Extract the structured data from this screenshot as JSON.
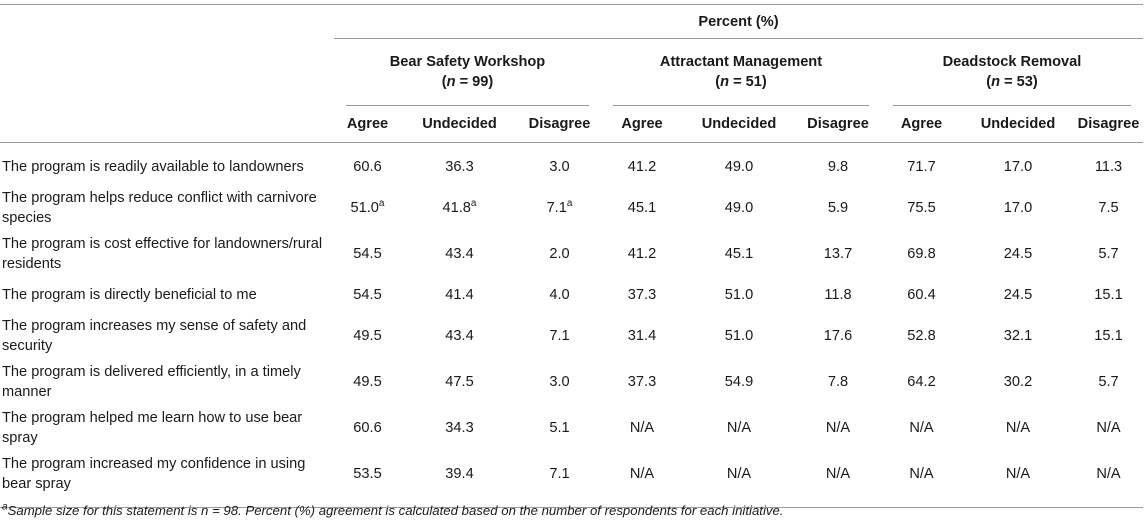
{
  "header": {
    "percent_label": "Percent (%)",
    "groups": [
      {
        "name": "Bear Safety Workshop",
        "n_label": "n",
        "n_eq": " = 99"
      },
      {
        "name": "Attractant Management",
        "n_label": "n",
        "n_eq": " = 51"
      },
      {
        "name": "Deadstock Removal",
        "n_label": "n",
        "n_eq": " = 53"
      }
    ],
    "sub": [
      "Agree",
      "Undecided",
      "Disagree",
      "Agree",
      "Undecided",
      "Disagree",
      "Agree",
      "Undecided",
      "Disagree"
    ]
  },
  "rows": [
    {
      "label": "The program is readily available to landowners",
      "values": [
        "60.6",
        "36.3",
        "3.0",
        "41.2",
        "49.0",
        "9.8",
        "71.7",
        "17.0",
        "11.3"
      ],
      "sup": [
        "",
        "",
        "",
        "",
        "",
        "",
        "",
        "",
        ""
      ]
    },
    {
      "label": "The program helps reduce conflict with carnivore species",
      "values": [
        "51.0",
        "41.8",
        "7.1",
        "45.1",
        "49.0",
        "5.9",
        "75.5",
        "17.0",
        "7.5"
      ],
      "sup": [
        "a",
        "a",
        "a",
        "",
        "",
        "",
        "",
        "",
        ""
      ]
    },
    {
      "label": "The program is cost effective for landowners/rural residents",
      "values": [
        "54.5",
        "43.4",
        "2.0",
        "41.2",
        "45.1",
        "13.7",
        "69.8",
        "24.5",
        "5.7"
      ],
      "sup": [
        "",
        "",
        "",
        "",
        "",
        "",
        "",
        "",
        ""
      ]
    },
    {
      "label": "The program is directly beneficial to me",
      "values": [
        "54.5",
        "41.4",
        "4.0",
        "37.3",
        "51.0",
        "11.8",
        "60.4",
        "24.5",
        "15.1"
      ],
      "sup": [
        "",
        "",
        "",
        "",
        "",
        "",
        "",
        "",
        ""
      ]
    },
    {
      "label": "The program increases my sense of safety and security",
      "values": [
        "49.5",
        "43.4",
        "7.1",
        "31.4",
        "51.0",
        "17.6",
        "52.8",
        "32.1",
        "15.1"
      ],
      "sup": [
        "",
        "",
        "",
        "",
        "",
        "",
        "",
        "",
        ""
      ]
    },
    {
      "label": "The program is delivered efficiently, in a timely manner",
      "values": [
        "49.5",
        "47.5",
        "3.0",
        "37.3",
        "54.9",
        "7.8",
        "64.2",
        "30.2",
        "5.7"
      ],
      "sup": [
        "",
        "",
        "",
        "",
        "",
        "",
        "",
        "",
        ""
      ]
    },
    {
      "label": "The program helped me learn how to use bear spray",
      "values": [
        "60.6",
        "34.3",
        "5.1",
        "N/A",
        "N/A",
        "N/A",
        "N/A",
        "N/A",
        "N/A"
      ],
      "sup": [
        "",
        "",
        "",
        "",
        "",
        "",
        "",
        "",
        ""
      ]
    },
    {
      "label": "The program increased my confidence in using bear spray",
      "values": [
        "53.5",
        "39.4",
        "7.1",
        "N/A",
        "N/A",
        "N/A",
        "N/A",
        "N/A",
        "N/A"
      ],
      "sup": [
        "",
        "",
        "",
        "",
        "",
        "",
        "",
        "",
        ""
      ]
    }
  ],
  "footnote": {
    "marker": "a",
    "text": "Sample size for this statement is n = 98. Percent (%) agreement is calculated based on the number of respondents for each initiative."
  }
}
